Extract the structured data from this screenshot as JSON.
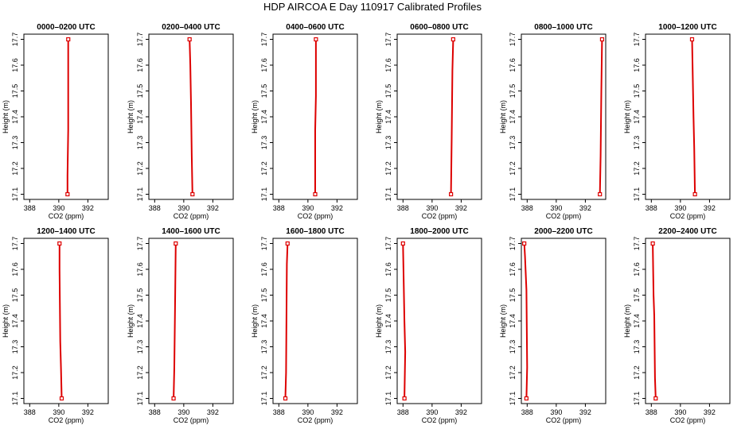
{
  "title": "HDP AIRCOA E  Day 110917  Calibrated Profiles",
  "colors": {
    "profile": "#dd0000",
    "frame": "#000000",
    "background": "#ffffff"
  },
  "chart_data": [
    {
      "type": "line",
      "title": "0000–0200 UTC",
      "xlabel": "CO2 (ppm)",
      "ylabel": "Height (m)",
      "xlim": [
        387.6,
        393.4
      ],
      "ylim": [
        17.08,
        17.72
      ],
      "xticks": [
        "388",
        "390",
        "392"
      ],
      "yticks": [
        "17.1",
        "17.2",
        "17.3",
        "17.4",
        "17.5",
        "17.6",
        "17.7"
      ],
      "grid": false,
      "x": [
        390.6,
        390.6,
        390.65,
        390.65
      ],
      "y": [
        17.1,
        17.17,
        17.35,
        17.7
      ],
      "markers": [
        0,
        3
      ]
    },
    {
      "type": "line",
      "title": "0200–0400 UTC",
      "xlabel": "CO2 (ppm)",
      "ylabel": "Height (m)",
      "xlim": [
        387.6,
        393.4
      ],
      "ylim": [
        17.08,
        17.72
      ],
      "xticks": [
        "388",
        "390",
        "392"
      ],
      "yticks": [
        "17.1",
        "17.2",
        "17.3",
        "17.4",
        "17.5",
        "17.6",
        "17.7"
      ],
      "grid": false,
      "x": [
        390.6,
        390.55,
        390.5,
        390.45,
        390.4
      ],
      "y": [
        17.1,
        17.25,
        17.45,
        17.6,
        17.7
      ],
      "markers": [
        0,
        4
      ]
    },
    {
      "type": "line",
      "title": "0400–0600 UTC",
      "xlabel": "CO2 (ppm)",
      "ylabel": "Height (m)",
      "xlim": [
        387.6,
        393.4
      ],
      "ylim": [
        17.08,
        17.72
      ],
      "xticks": [
        "388",
        "390",
        "392"
      ],
      "yticks": [
        "17.1",
        "17.2",
        "17.3",
        "17.4",
        "17.5",
        "17.6",
        "17.7"
      ],
      "grid": false,
      "x": [
        390.5,
        390.5,
        390.55,
        390.55
      ],
      "y": [
        17.1,
        17.35,
        17.48,
        17.7
      ],
      "markers": [
        0,
        3
      ]
    },
    {
      "type": "line",
      "title": "0600–0800 UTC",
      "xlabel": "CO2 (ppm)",
      "ylabel": "Height (m)",
      "xlim": [
        387.6,
        393.4
      ],
      "ylim": [
        17.08,
        17.72
      ],
      "xticks": [
        "388",
        "390",
        "392"
      ],
      "yticks": [
        "17.1",
        "17.2",
        "17.3",
        "17.4",
        "17.5",
        "17.6",
        "17.7"
      ],
      "grid": false,
      "x": [
        391.3,
        391.35,
        391.4,
        391.45
      ],
      "y": [
        17.1,
        17.32,
        17.58,
        17.7
      ],
      "markers": [
        0,
        3
      ]
    },
    {
      "type": "line",
      "title": "0800–1000 UTC",
      "xlabel": "CO2 (ppm)",
      "ylabel": "Height (m)",
      "xlim": [
        387.6,
        393.4
      ],
      "ylim": [
        17.08,
        17.72
      ],
      "xticks": [
        "388",
        "390",
        "392"
      ],
      "yticks": [
        "17.1",
        "17.2",
        "17.3",
        "17.4",
        "17.5",
        "17.6",
        "17.7"
      ],
      "grid": false,
      "x": [
        393.0,
        393.05,
        393.1,
        393.15
      ],
      "y": [
        17.1,
        17.25,
        17.5,
        17.7
      ],
      "markers": [
        0,
        3
      ]
    },
    {
      "type": "line",
      "title": "1000–1200 UTC",
      "xlabel": "CO2 (ppm)",
      "ylabel": "Height (m)",
      "xlim": [
        387.6,
        393.4
      ],
      "ylim": [
        17.08,
        17.72
      ],
      "xticks": [
        "388",
        "390",
        "392"
      ],
      "yticks": [
        "17.1",
        "17.2",
        "17.3",
        "17.4",
        "17.5",
        "17.6",
        "17.7"
      ],
      "grid": false,
      "x": [
        391.0,
        390.95,
        390.9,
        390.85,
        390.8
      ],
      "y": [
        17.1,
        17.28,
        17.4,
        17.55,
        17.7
      ],
      "markers": [
        0,
        4
      ]
    },
    {
      "type": "line",
      "title": "1200–1400 UTC",
      "xlabel": "CO2 (ppm)",
      "ylabel": "Height (m)",
      "xlim": [
        387.6,
        393.4
      ],
      "ylim": [
        17.08,
        17.72
      ],
      "xticks": [
        "388",
        "390",
        "392"
      ],
      "yticks": [
        "17.1",
        "17.2",
        "17.3",
        "17.4",
        "17.5",
        "17.6",
        "17.7"
      ],
      "grid": false,
      "x": [
        390.2,
        390.15,
        390.1,
        390.05,
        390.05
      ],
      "y": [
        17.1,
        17.22,
        17.32,
        17.6,
        17.7
      ],
      "markers": [
        0,
        4
      ]
    },
    {
      "type": "line",
      "title": "1400–1600 UTC",
      "xlabel": "CO2 (ppm)",
      "ylabel": "Height (m)",
      "xlim": [
        387.6,
        393.4
      ],
      "ylim": [
        17.08,
        17.72
      ],
      "xticks": [
        "388",
        "390",
        "392"
      ],
      "yticks": [
        "17.1",
        "17.2",
        "17.3",
        "17.4",
        "17.5",
        "17.6",
        "17.7"
      ],
      "grid": false,
      "x": [
        389.3,
        389.35,
        389.4,
        389.45
      ],
      "y": [
        17.1,
        17.22,
        17.45,
        17.7
      ],
      "markers": [
        0,
        3
      ]
    },
    {
      "type": "line",
      "title": "1600–1800 UTC",
      "xlabel": "CO2 (ppm)",
      "ylabel": "Height (m)",
      "xlim": [
        387.6,
        393.4
      ],
      "ylim": [
        17.08,
        17.72
      ],
      "xticks": [
        "388",
        "390",
        "392"
      ],
      "yticks": [
        "17.1",
        "17.2",
        "17.3",
        "17.4",
        "17.5",
        "17.6",
        "17.7"
      ],
      "grid": false,
      "x": [
        388.45,
        388.5,
        388.55,
        388.6
      ],
      "y": [
        17.1,
        17.2,
        17.62,
        17.7
      ],
      "markers": [
        0,
        3
      ]
    },
    {
      "type": "line",
      "title": "1800–2000 UTC",
      "xlabel": "CO2 (ppm)",
      "ylabel": "Height (m)",
      "xlim": [
        387.6,
        393.4
      ],
      "ylim": [
        17.08,
        17.72
      ],
      "xticks": [
        "388",
        "390",
        "392"
      ],
      "yticks": [
        "17.1",
        "17.2",
        "17.3",
        "17.4",
        "17.5",
        "17.6",
        "17.7"
      ],
      "grid": false,
      "x": [
        388.1,
        388.15,
        388.1,
        388.05,
        388.0
      ],
      "y": [
        17.1,
        17.28,
        17.4,
        17.55,
        17.7
      ],
      "markers": [
        0,
        4
      ]
    },
    {
      "type": "line",
      "title": "2000–2200 UTC",
      "xlabel": "CO2 (ppm)",
      "ylabel": "Height (m)",
      "xlim": [
        387.6,
        393.4
      ],
      "ylim": [
        17.08,
        17.72
      ],
      "xticks": [
        "388",
        "390",
        "392"
      ],
      "yticks": [
        "17.1",
        "17.2",
        "17.3",
        "17.4",
        "17.5",
        "17.6",
        "17.7"
      ],
      "grid": false,
      "x": [
        387.95,
        388.0,
        387.95,
        387.85,
        387.8
      ],
      "y": [
        17.1,
        17.22,
        17.52,
        17.65,
        17.7
      ],
      "markers": [
        0,
        4
      ]
    },
    {
      "type": "line",
      "title": "2200–2400 UTC",
      "xlabel": "CO2 (ppm)",
      "ylabel": "Height (m)",
      "xlim": [
        387.6,
        393.4
      ],
      "ylim": [
        17.08,
        17.72
      ],
      "xticks": [
        "388",
        "390",
        "392"
      ],
      "yticks": [
        "17.1",
        "17.2",
        "17.3",
        "17.4",
        "17.5",
        "17.6",
        "17.7"
      ],
      "grid": false,
      "x": [
        388.3,
        388.25,
        388.2,
        388.15,
        388.1
      ],
      "y": [
        17.1,
        17.18,
        17.42,
        17.5,
        17.7
      ],
      "markers": [
        0,
        4
      ]
    }
  ]
}
